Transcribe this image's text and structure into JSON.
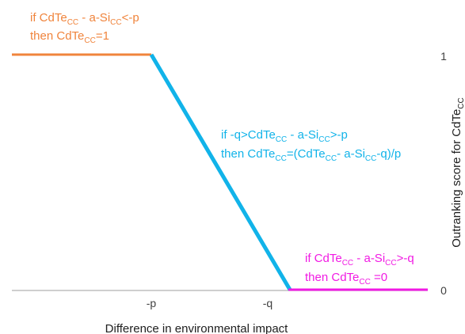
{
  "colors": {
    "orange": "#F0843C",
    "blue": "#11B3E9",
    "magenta": "#F11AE3",
    "axis": "#BFBFBF",
    "text": "#404040"
  },
  "rules": {
    "top": {
      "line1": {
        "a": "if CdTe",
        "a_sub": "CC",
        "b": " - a-Si",
        "b_sub": "CC",
        "c": "<-p"
      },
      "line2": {
        "a": "then CdTe",
        "a_sub": "CC",
        "c": "=1"
      }
    },
    "middle": {
      "line1": {
        "a": "if -q>CdTe",
        "a_sub": "CC",
        "b": " - a-Si",
        "b_sub": "CC",
        "c": ">-p"
      },
      "line2": {
        "a": "then CdTe",
        "a_sub": "CC",
        "b": "=(CdTe",
        "b_sub": "CC",
        "c": "- a-Si",
        "c_sub": "CC",
        "d": "-q)/p"
      }
    },
    "bottom": {
      "line1": {
        "a": "if CdTe",
        "a_sub": "CC",
        "b": " - a-Si",
        "b_sub": "CC",
        "c": ">-q"
      },
      "line2": {
        "a": "then CdTe",
        "a_sub": "CC",
        "c": " =0"
      }
    }
  },
  "axes": {
    "x_ticks": [
      "-p",
      "-q"
    ],
    "y_ticks": [
      "1",
      "0"
    ],
    "x_title": "Difference in environmental impact",
    "y_title": {
      "main": "Outranking score for CdTe",
      "sub": "CC"
    }
  }
}
